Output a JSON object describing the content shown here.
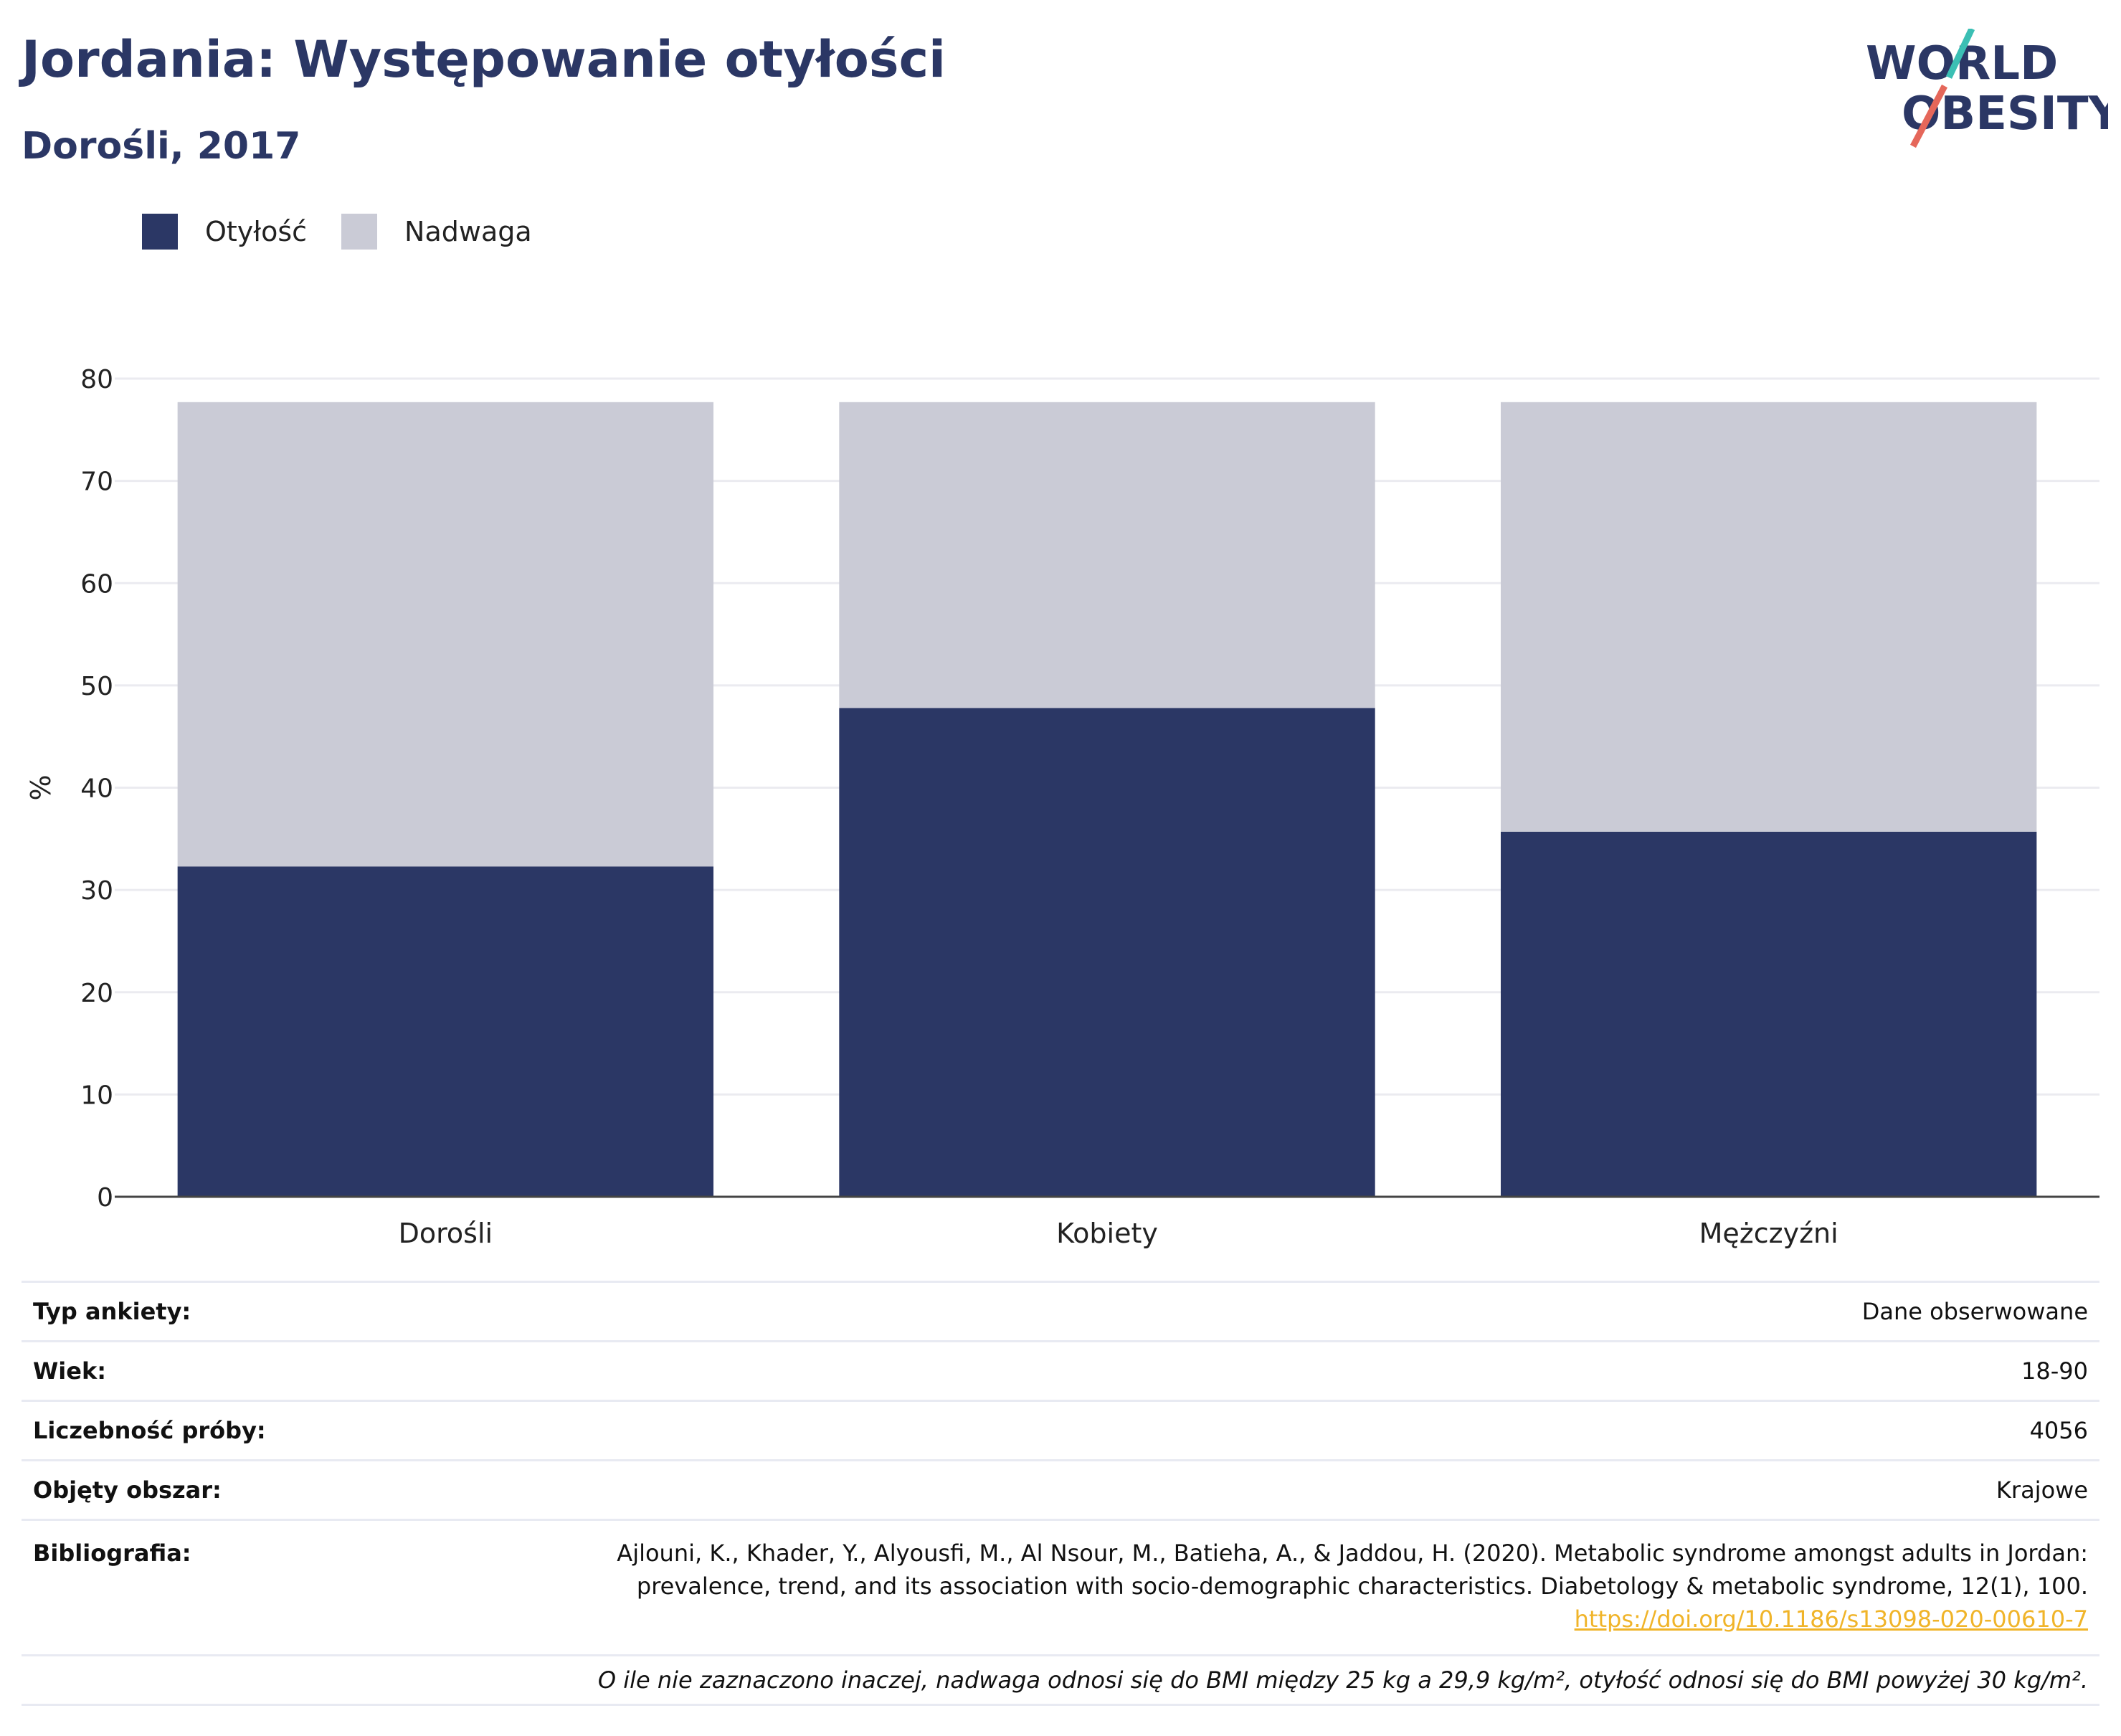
{
  "header": {
    "title": "Jordania: Występowanie otyłości",
    "subtitle": "Dorośli, 2017"
  },
  "logo": {
    "line1": "WORLD",
    "line2": "OBESITY"
  },
  "legend": [
    {
      "label": "Otyłość",
      "color": "#2b3765"
    },
    {
      "label": "Nadwaga",
      "color": "#cacbd6"
    }
  ],
  "chart_data": {
    "type": "bar",
    "stacked": true,
    "categories": [
      "Dorośli",
      "Kobiety",
      "Mężczyźni"
    ],
    "series": [
      {
        "name": "Otyłość",
        "values": [
          32.3,
          47.8,
          35.7
        ],
        "color": "#2b3765"
      },
      {
        "name": "Nadwaga",
        "values": [
          45.4,
          29.9,
          42.0
        ],
        "color": "#cacbd6"
      }
    ],
    "ylabel": "%",
    "ylim": [
      0,
      80
    ],
    "yticks": [
      0,
      10,
      20,
      30,
      40,
      50,
      60,
      70,
      80
    ],
    "grid": true,
    "legend_position": "top-left"
  },
  "meta": {
    "survey_type": {
      "label": "Typ ankiety:",
      "value": "Dane obserwowane"
    },
    "age": {
      "label": "Wiek:",
      "value": "18-90"
    },
    "sample": {
      "label": "Liczebność próby:",
      "value": "4056"
    },
    "area": {
      "label": "Objęty obszar:",
      "value": "Krajowe"
    },
    "bibliography": {
      "label": "Bibliografia:",
      "line1": "Ajlouni, K., Khader, Y., Alyousfi, M., Al Nsour, M., Batieha, A., & Jaddou, H. (2020). Metabolic syndrome amongst adults in Jordan:",
      "line2": "prevalence, trend, and its association with socio-demographic characteristics. Diabetology & metabolic syndrome, 12(1), 100.",
      "doi": "https://doi.org/10.1186/s13098-020-00610-7"
    },
    "note": "O ile nie zaznaczono inaczej, nadwaga odnosi się do BMI między 25 kg a 29,9 kg/m², otyłość odnosi się do BMI powyżej 30 kg/m²."
  }
}
